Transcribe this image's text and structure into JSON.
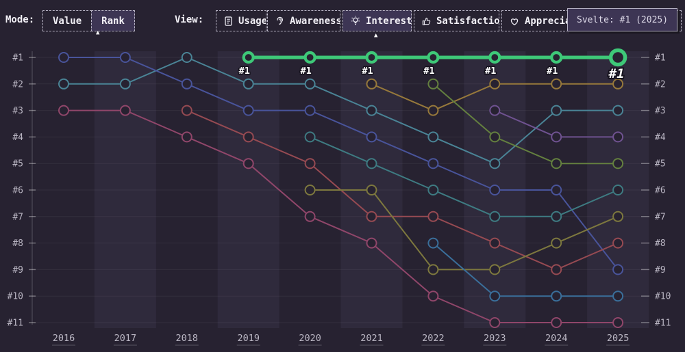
{
  "mode_bar": {
    "mode_label": "Mode:",
    "modes": [
      {
        "label": "Value",
        "selected": false
      },
      {
        "label": "Rank",
        "selected": true
      }
    ],
    "view_label": "View:",
    "views": [
      {
        "label": "Usage",
        "icon": "document-icon",
        "selected": false
      },
      {
        "label": "Awareness",
        "icon": "ear-icon",
        "selected": false
      },
      {
        "label": "Interest",
        "icon": "lightbulb-icon",
        "selected": true
      },
      {
        "label": "Satisfaction",
        "icon": "thumbs-up-icon",
        "selected": false
      },
      {
        "label": "Appreciation",
        "icon": "heart-icon",
        "selected": false
      }
    ]
  },
  "tooltip": {
    "text": "Svelte: #1 (2025)"
  },
  "chart_data": {
    "type": "line",
    "subtype": "bump-rank-chart",
    "x_labels": [
      "2016",
      "2017",
      "2018",
      "2019",
      "2020",
      "2021",
      "2022",
      "2023",
      "2024",
      "2025"
    ],
    "rank_labels": [
      "#1",
      "#2",
      "#3",
      "#4",
      "#5",
      "#6",
      "#7",
      "#8",
      "#9",
      "#10",
      "#11"
    ],
    "ylim": [
      1,
      11
    ],
    "grid": true,
    "shaded_x_labels": [
      "2017",
      "2019",
      "2021",
      "2023",
      "2025"
    ],
    "highlight_point_label": "#1",
    "colors": {
      "background": "#272231",
      "band": "#2f2a3c",
      "highlight": "#3ec878",
      "axis_text": "#bab6c3"
    },
    "series": [
      {
        "name": "teal",
        "color": "#4a8496",
        "highlight": false,
        "ranks": [
          2,
          2,
          1,
          2,
          2,
          3,
          4,
          5,
          3,
          3
        ]
      },
      {
        "name": "indigo",
        "color": "#49549b",
        "highlight": false,
        "ranks": [
          1,
          1,
          2,
          3,
          3,
          4,
          5,
          6,
          6,
          9
        ]
      },
      {
        "name": "pink",
        "color": "#90466a",
        "highlight": false,
        "ranks": [
          3,
          3,
          4,
          5,
          7,
          8,
          10,
          11,
          11,
          11
        ]
      },
      {
        "name": "red",
        "color": "#964a52",
        "highlight": false,
        "ranks": [
          null,
          null,
          3,
          4,
          5,
          7,
          7,
          8,
          9,
          8
        ]
      },
      {
        "name": "seagreen",
        "color": "#3e7b82",
        "highlight": false,
        "ranks": [
          null,
          null,
          null,
          null,
          4,
          5,
          6,
          7,
          7,
          6
        ]
      },
      {
        "name": "olive",
        "color": "#7d783e",
        "highlight": false,
        "ranks": [
          null,
          null,
          null,
          null,
          6,
          6,
          9,
          9,
          8,
          7
        ]
      },
      {
        "name": "gold",
        "color": "#97793b",
        "highlight": false,
        "ranks": [
          null,
          null,
          null,
          null,
          null,
          2,
          3,
          2,
          2,
          2
        ]
      },
      {
        "name": "olive-green",
        "color": "#64803f",
        "highlight": false,
        "ranks": [
          null,
          null,
          null,
          null,
          null,
          null,
          2,
          4,
          5,
          5
        ]
      },
      {
        "name": "azure",
        "color": "#3a6f9b",
        "highlight": false,
        "ranks": [
          null,
          null,
          null,
          null,
          null,
          null,
          8,
          10,
          10,
          10
        ]
      },
      {
        "name": "purple",
        "color": "#6f5290",
        "highlight": false,
        "ranks": [
          null,
          null,
          null,
          null,
          null,
          null,
          null,
          3,
          4,
          4
        ]
      },
      {
        "name": "svelte",
        "color": "#3ec878",
        "highlight": true,
        "ranks": [
          null,
          null,
          null,
          1,
          1,
          1,
          1,
          1,
          1,
          1
        ]
      }
    ]
  }
}
